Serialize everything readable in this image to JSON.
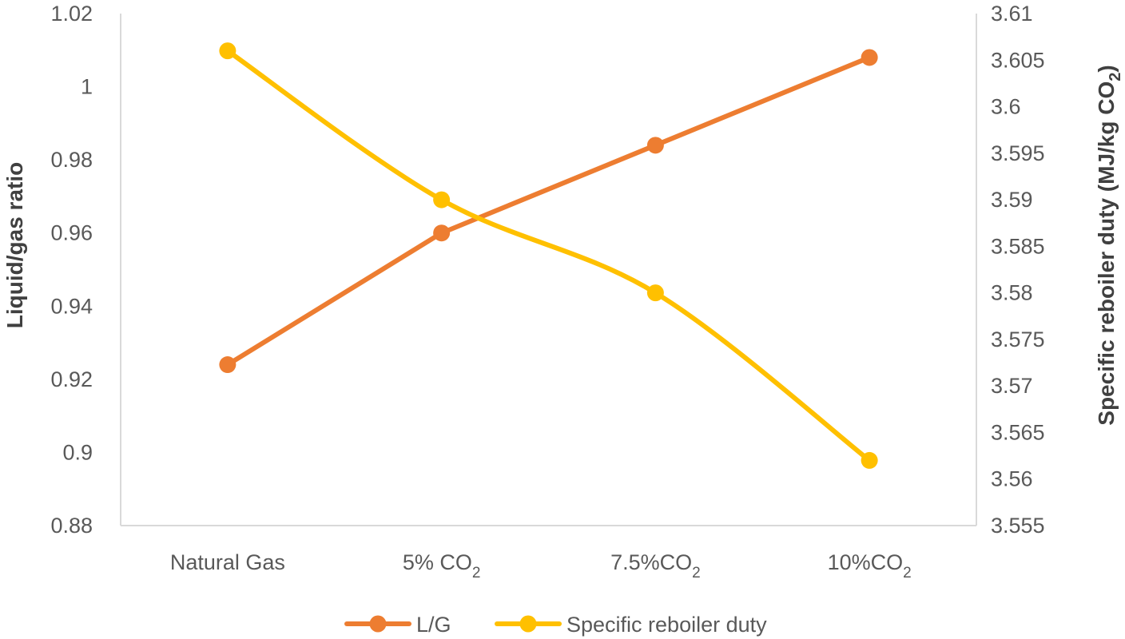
{
  "chart_data": {
    "type": "line",
    "categories": [
      "Natural Gas",
      "5% CO2",
      "7.5%CO2",
      "10%CO2"
    ],
    "category_labels": [
      {
        "text": "Natural Gas",
        "sub": ""
      },
      {
        "text": "5% CO",
        "sub": "2"
      },
      {
        "text": "7.5%CO",
        "sub": "2"
      },
      {
        "text": "10%CO",
        "sub": "2"
      }
    ],
    "series": [
      {
        "name": "L/G",
        "axis": "left",
        "color": "#ED7D31",
        "values": [
          0.924,
          0.96,
          0.984,
          1.008
        ]
      },
      {
        "name": "Specific reboiler duty",
        "axis": "right",
        "color": "#FFC000",
        "values": [
          3.606,
          3.59,
          3.58,
          3.562
        ]
      }
    ],
    "y_left": {
      "label": "Liquid/gas ratio",
      "ylim": [
        0.88,
        1.02
      ],
      "ticks": [
        0.88,
        0.9,
        0.92,
        0.94,
        0.96,
        0.98,
        1,
        1.02
      ],
      "tick_labels": [
        "0.88",
        "0.9",
        "0.92",
        "0.94",
        "0.96",
        "0.98",
        "1",
        "1.02"
      ]
    },
    "y_right": {
      "label_main": "Specific reboiler duty (MJ/kg CO",
      "label_sub": "2",
      "label_end": ")",
      "ylim": [
        3.555,
        3.61
      ],
      "ticks": [
        3.555,
        3.56,
        3.565,
        3.57,
        3.575,
        3.58,
        3.585,
        3.59,
        3.595,
        3.6,
        3.605,
        3.61
      ],
      "tick_labels": [
        "3.555",
        "3.56",
        "3.565",
        "3.57",
        "3.575",
        "3.58",
        "3.585",
        "3.59",
        "3.595",
        "3.6",
        "3.605",
        "3.61"
      ]
    },
    "grid": false,
    "legend_position": "bottom"
  }
}
